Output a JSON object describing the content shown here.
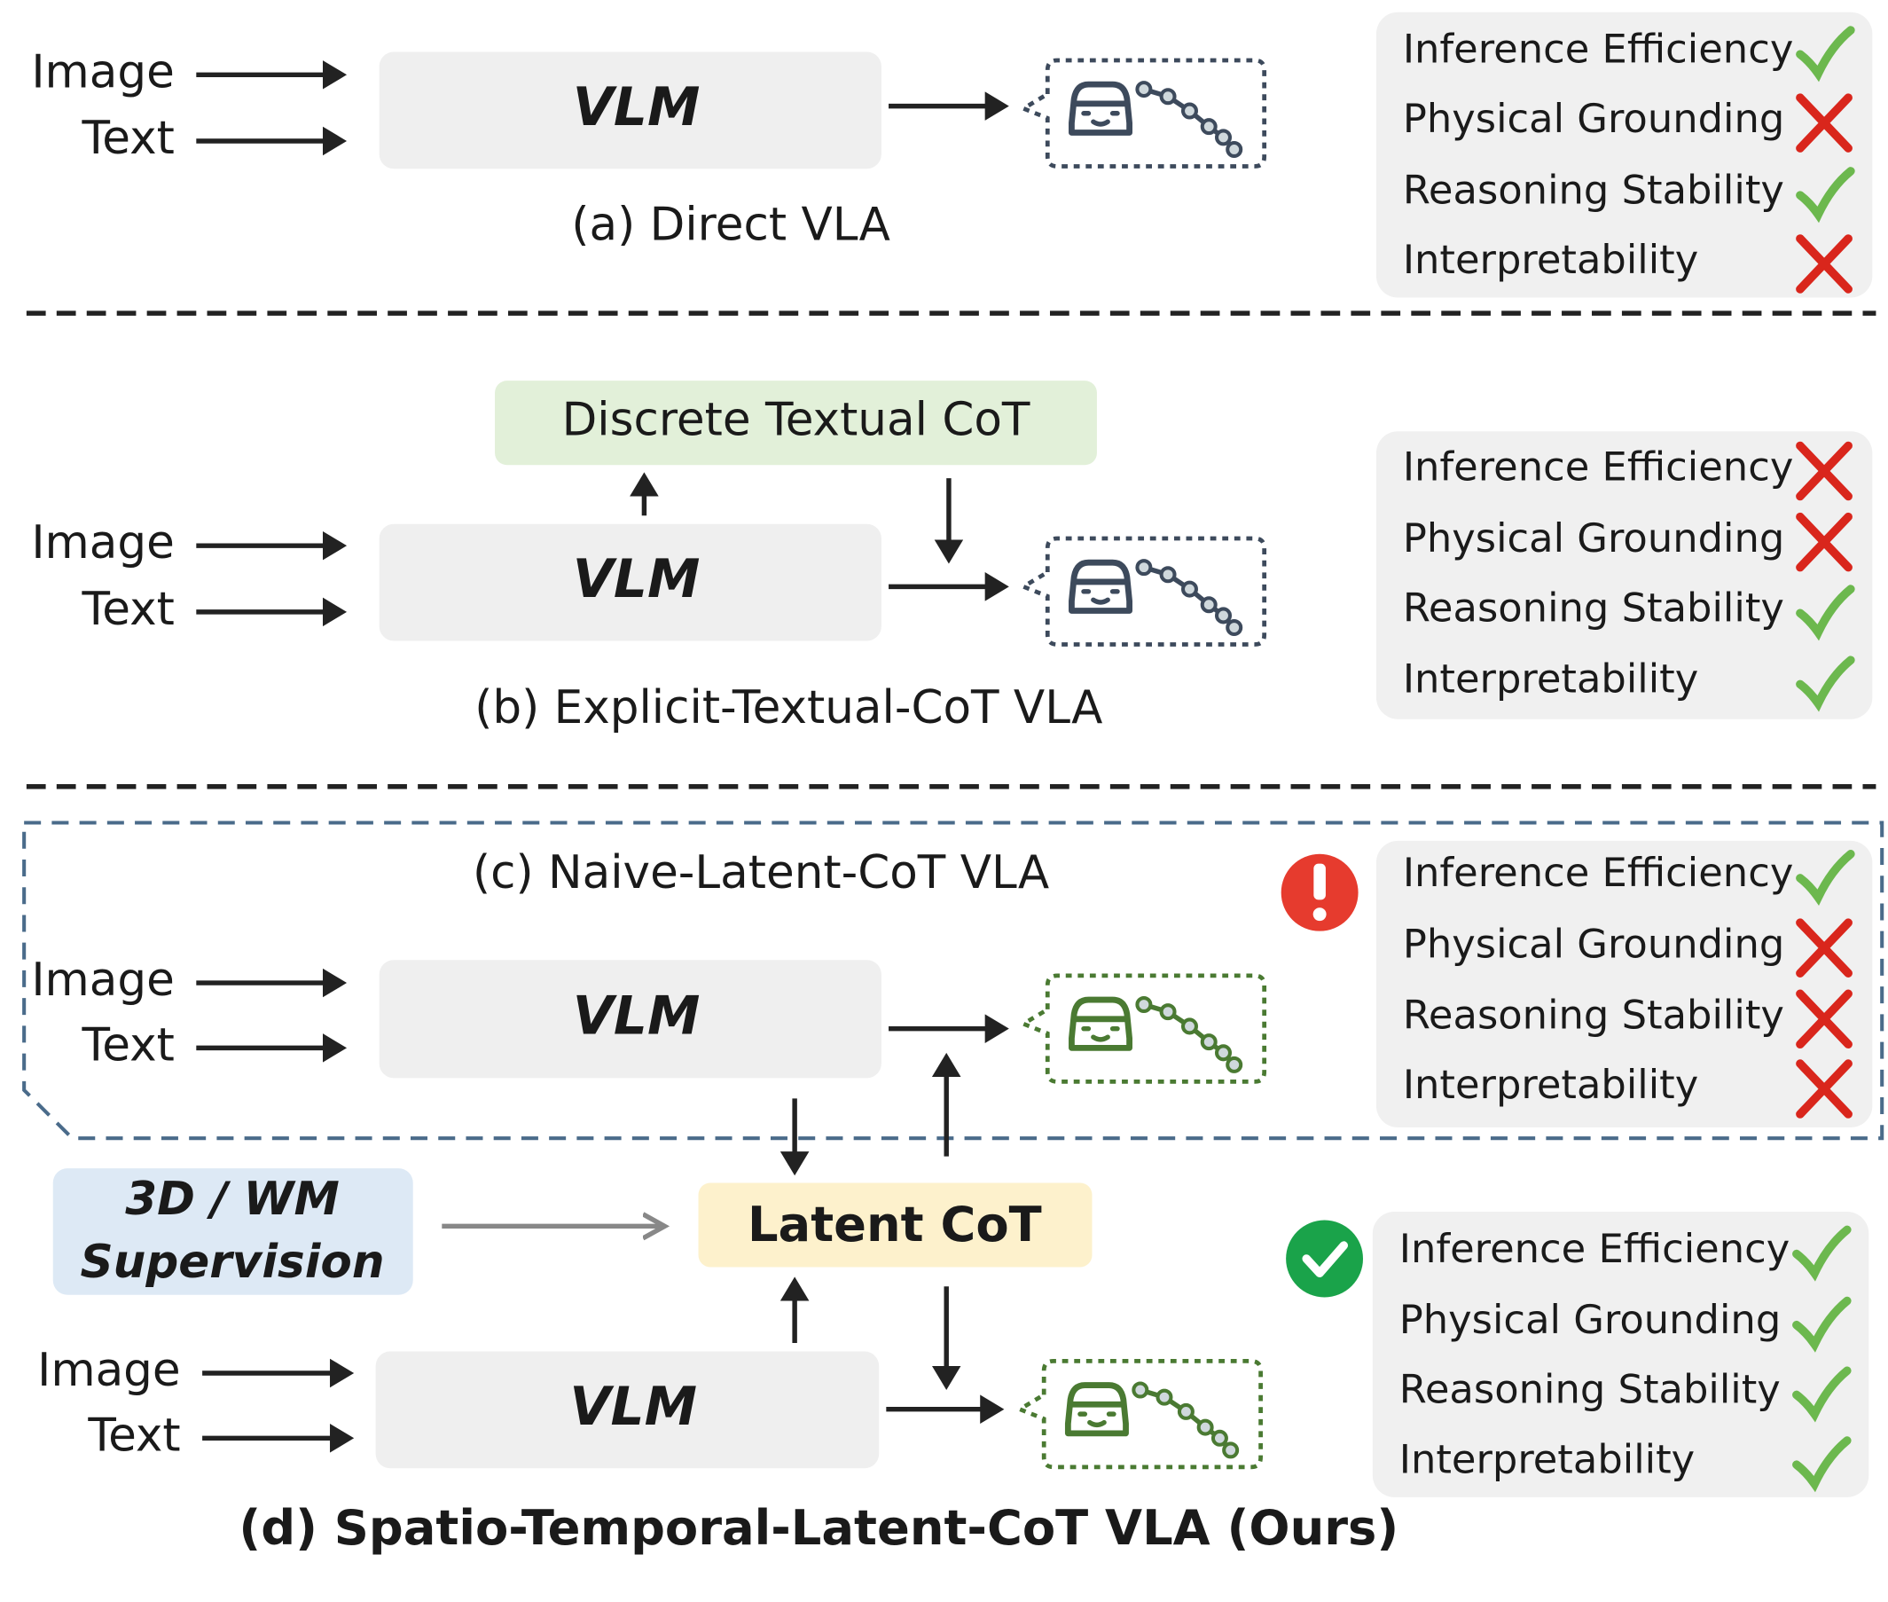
{
  "panels": [
    {
      "caption": "(a) Direct VLA",
      "inputs": [
        "Image",
        "Text"
      ],
      "model": "VLM",
      "properties": [
        {
          "label": "Inference Efficiency",
          "status": "check"
        },
        {
          "label": "Physical Grounding",
          "status": "cross"
        },
        {
          "label": "Reasoning Stability",
          "status": "check"
        },
        {
          "label": "Interpretability",
          "status": "cross"
        }
      ]
    },
    {
      "caption": "(b) Explicit-Textual-CoT VLA",
      "inputs": [
        "Image",
        "Text"
      ],
      "model": "VLM",
      "cot": "Discrete Textual CoT",
      "properties": [
        {
          "label": "Inference Efficiency",
          "status": "cross"
        },
        {
          "label": "Physical Grounding",
          "status": "cross"
        },
        {
          "label": "Reasoning Stability",
          "status": "check"
        },
        {
          "label": "Interpretability",
          "status": "check"
        }
      ]
    },
    {
      "caption": "(c) Naive-Latent-CoT VLA",
      "inputs": [
        "Image",
        "Text"
      ],
      "model": "VLM",
      "properties": [
        {
          "label": "Inference Efficiency",
          "status": "check"
        },
        {
          "label": "Physical Grounding",
          "status": "cross"
        },
        {
          "label": "Reasoning Stability",
          "status": "cross"
        },
        {
          "label": "Interpretability",
          "status": "cross"
        }
      ]
    },
    {
      "caption": "(d) Spatio-Temporal-Latent-CoT VLA (Ours)",
      "inputs": [
        "Image",
        "Text"
      ],
      "model": "VLM",
      "cot": "Latent CoT",
      "supervision": [
        "3D / WM",
        "Supervision"
      ],
      "properties": [
        {
          "label": "Inference Efficiency",
          "status": "check"
        },
        {
          "label": "Physical Grounding",
          "status": "check"
        },
        {
          "label": "Reasoning Stability",
          "status": "check"
        },
        {
          "label": "Interpretability",
          "status": "check"
        }
      ]
    }
  ]
}
